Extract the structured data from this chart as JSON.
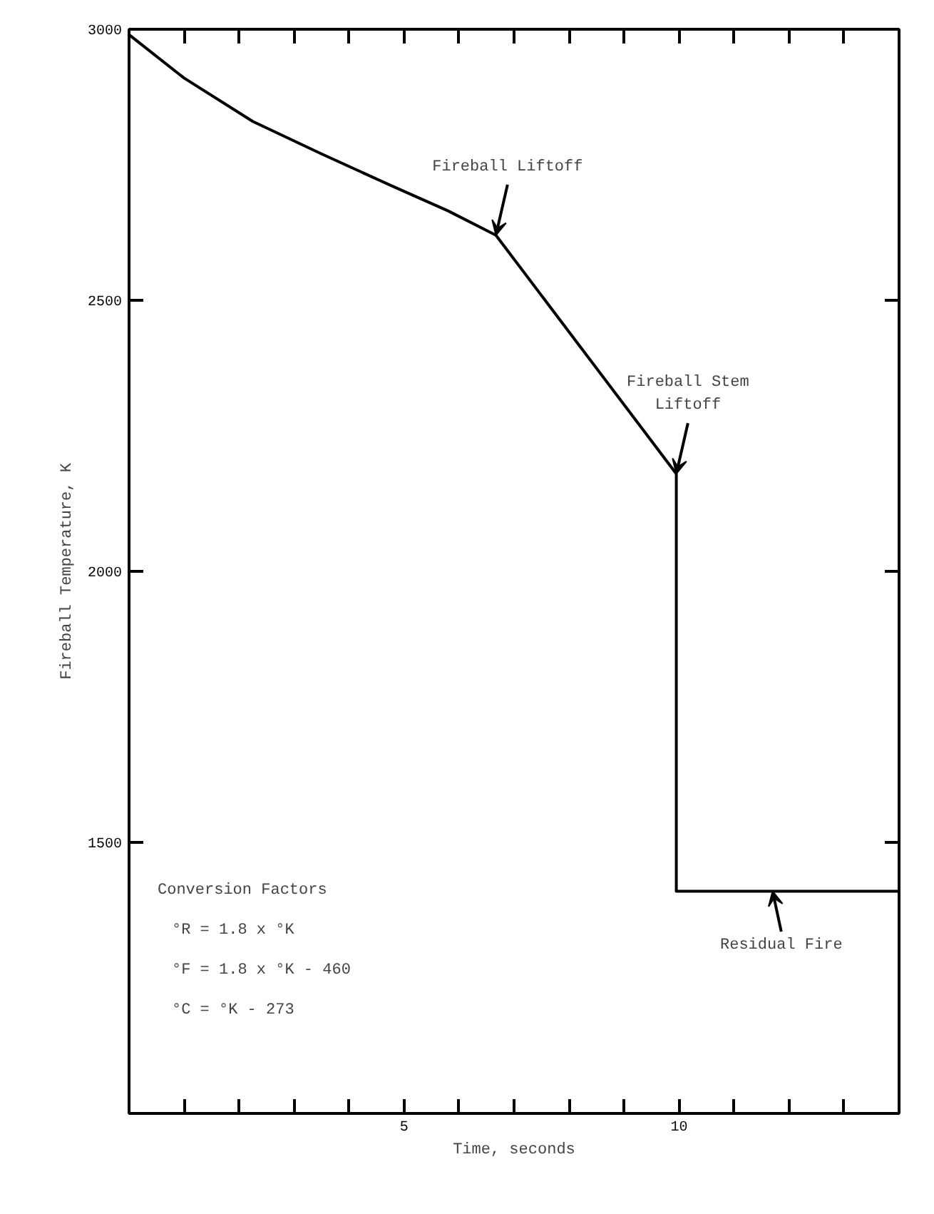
{
  "chart_data": {
    "type": "line",
    "xlabel": "Time, seconds",
    "ylabel": "Fireball Temperature, K",
    "x": [
      0,
      1,
      2.25,
      3.5,
      4.8,
      5.8,
      6.67,
      9.95,
      9.95,
      14
    ],
    "series": [
      {
        "color": "#000000",
        "values": [
          2990,
          2910,
          2830,
          2770,
          2710,
          2665,
          2620,
          2180,
          1410,
          1410
        ]
      }
    ],
    "xlim": [
      0,
      14
    ],
    "xticks": [
      {
        "value": 1,
        "label": null
      },
      {
        "value": 2,
        "label": null
      },
      {
        "value": 3,
        "label": null
      },
      {
        "value": 4,
        "label": null
      },
      5,
      {
        "value": 6,
        "label": null
      },
      {
        "value": 7,
        "label": null
      },
      {
        "value": 8,
        "label": null
      },
      {
        "value": 9,
        "label": null
      },
      10,
      {
        "value": 11,
        "label": null
      },
      {
        "value": 12,
        "label": null
      },
      {
        "value": 13,
        "label": null
      }
    ],
    "ylim": [
      1000,
      3000
    ],
    "yticks": [
      1500,
      2000,
      2500,
      3000
    ],
    "grid": false,
    "marker": "none",
    "line_style": "solid",
    "annotations": [
      {
        "text": "Fireball Liftoff",
        "x": 6.67,
        "y": 2620
      },
      {
        "text": "Fireball Stem\nLiftoff",
        "x": 9.95,
        "y": 2180
      },
      {
        "text": "Residual Fire",
        "x": 11.7,
        "y": 1410
      },
      "Conversion Factors",
      "°R = 1.8 x °K",
      "°F = 1.8 x °K - 460",
      "°C = °K - 273"
    ]
  }
}
